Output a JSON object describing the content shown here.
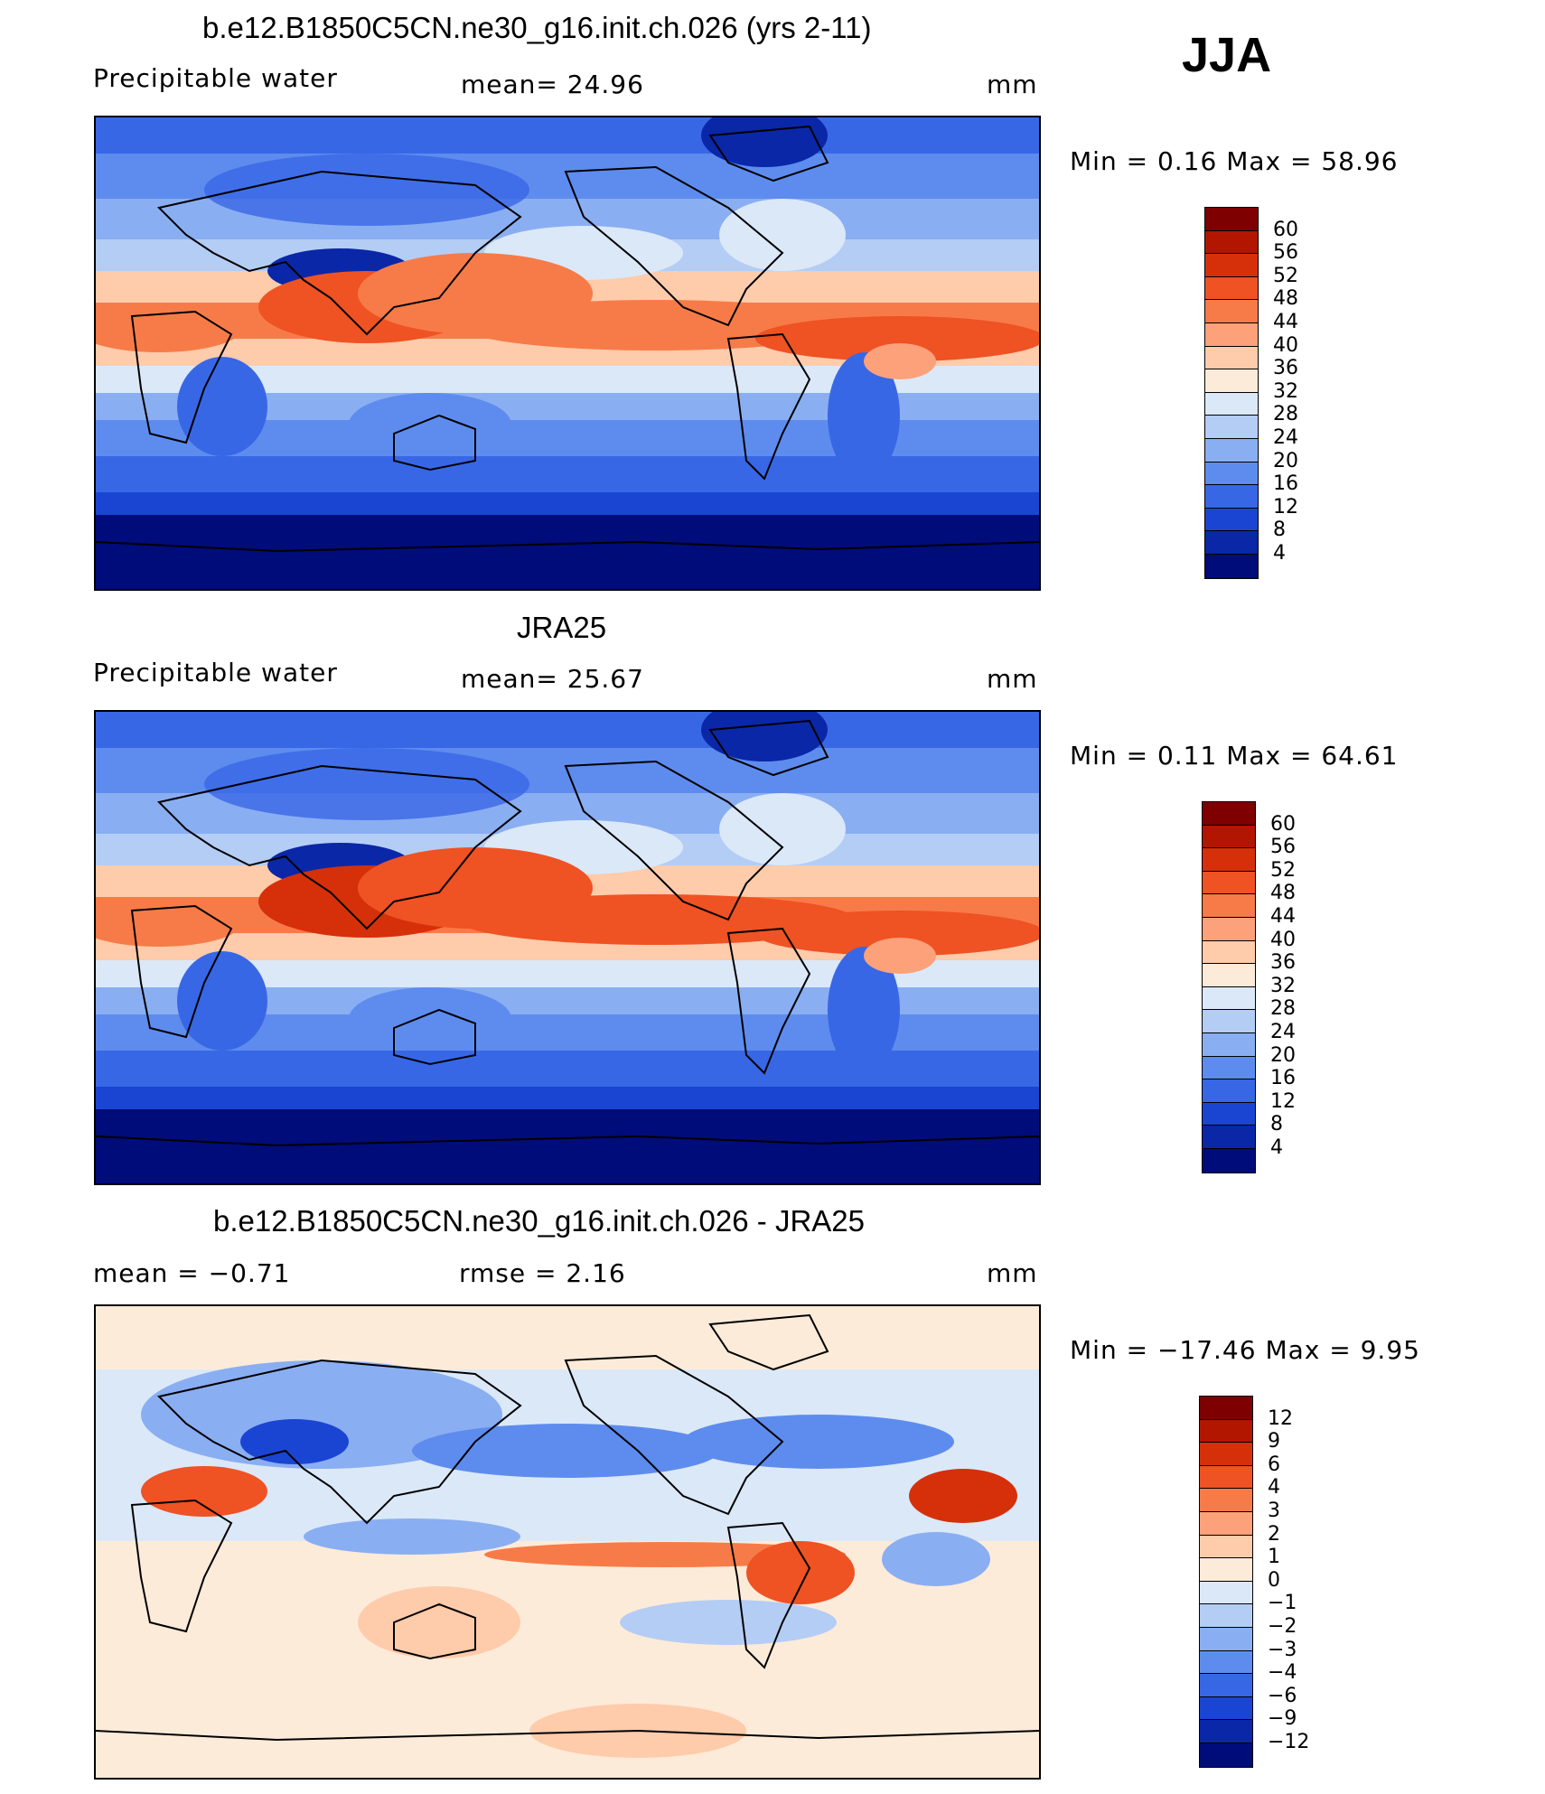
{
  "season": "JJA",
  "panels": [
    {
      "title": "b.e12.B1850C5CN.ne30_g16.init.ch.026 (yrs 2-11)",
      "left_label": "Precipitable  water",
      "center_label": "mean=   24.96",
      "units": "mm",
      "minmax": "Min  =     0.16  Max  =    58.96",
      "colorbar_labels": [
        "60",
        "56",
        "52",
        "48",
        "44",
        "40",
        "36",
        "32",
        "28",
        "24",
        "20",
        "16",
        "12",
        "8",
        "4"
      ],
      "map_kind": "model"
    },
    {
      "title": "JRA25",
      "left_label": "Precipitable  water",
      "center_label": "mean=   25.67",
      "units": "mm",
      "minmax": "Min  =     0.11  Max  =    64.61",
      "colorbar_labels": [
        "60",
        "56",
        "52",
        "48",
        "44",
        "40",
        "36",
        "32",
        "28",
        "24",
        "20",
        "16",
        "12",
        "8",
        "4"
      ],
      "map_kind": "obs"
    },
    {
      "title": "b.e12.B1850C5CN.ne30_g16.init.ch.026 - JRA25",
      "left_label": "mean  =    −0.71",
      "center_label": "rmse  =     2.16",
      "units": "mm",
      "minmax": "Min  =  −17.46  Max  =     9.95",
      "colorbar_labels": [
        "12",
        "9",
        "6",
        "4",
        "3",
        "2",
        "1",
        "0",
        "−1",
        "−2",
        "−3",
        "−4",
        "−6",
        "−9",
        "−12"
      ],
      "map_kind": "diff"
    }
  ],
  "colors": {
    "abs_scale": [
      "#7e0000",
      "#b21600",
      "#d5300a",
      "#ef5223",
      "#f77b48",
      "#fca17a",
      "#fecbab",
      "#fdebd9",
      "#dbe8f8",
      "#b4cdf5",
      "#8aaef2",
      "#5e8cee",
      "#3867e6",
      "#1a45d2",
      "#0a27a8",
      "#000c7a"
    ],
    "diff_scale": [
      "#7e0000",
      "#b21600",
      "#d5300a",
      "#ef5223",
      "#f77b48",
      "#fca17a",
      "#fecbab",
      "#fdebd9",
      "#dbe8f8",
      "#b4cdf5",
      "#8aaef2",
      "#5e8cee",
      "#3867e6",
      "#1a45d2",
      "#0a27a8",
      "#000c7a"
    ]
  }
}
